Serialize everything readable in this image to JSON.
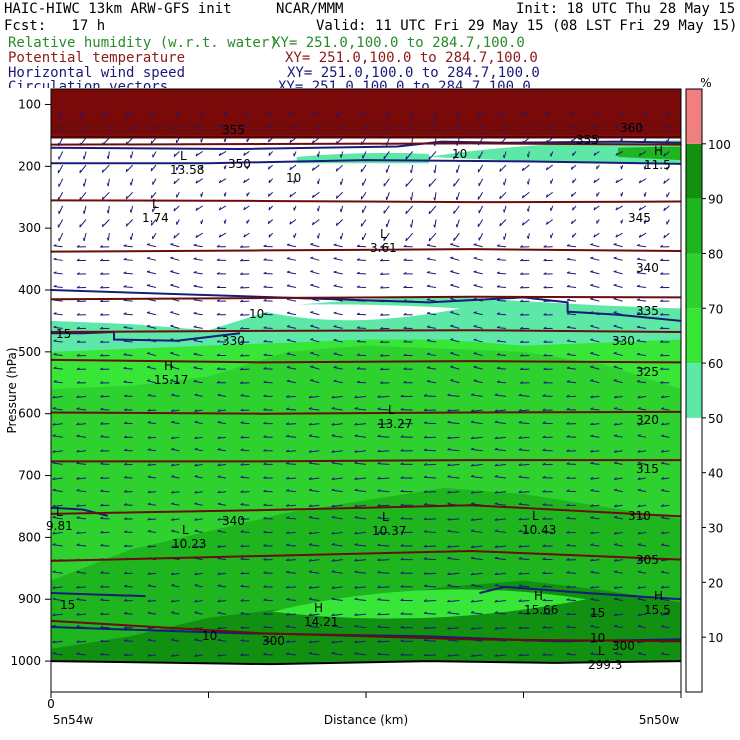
{
  "header": {
    "model": "HAIC-HIWC 13km ARW-GFS init",
    "center": "NCAR/MMM",
    "init": "Init: 18 UTC Thu 28 May 15",
    "fcst": "Fcst:   17 h",
    "valid": "Valid: 11 UTC Fri 29 May 15 (08 LST Fri 29 May 15)"
  },
  "fields": [
    {
      "name": "Relative humidity (w.r.t. water)",
      "xy": "XY= 251.0,100.0 to 284.7,100.0",
      "color": "#2a8a2a"
    },
    {
      "name": "Potential temperature",
      "xy": "XY= 251.0,100.0 to 284.7,100.0",
      "color": "#8b1a1a"
    },
    {
      "name": "Horizontal wind speed",
      "xy": "XY= 251.0,100.0 to 284.7,100.0",
      "color": "#1a1a7a"
    },
    {
      "name": "Circulation vectors",
      "xy": "XY= 251.0,100.0 to 284.7,100.0",
      "color": "#1a1a7a"
    }
  ],
  "chart_data": {
    "type": "heatmap",
    "title": "HAIC-HIWC 13km ARW-GFS init",
    "xlabel": "Distance (km)",
    "ylabel": "Pressure (hPa)",
    "x_tick_labels": {
      "left_value": "0",
      "left_loc": "5n54w",
      "right_loc": "5n50w"
    },
    "yticks": [
      100,
      200,
      300,
      400,
      500,
      600,
      700,
      800,
      900,
      1000
    ],
    "ylim": [
      1050,
      75
    ],
    "colorbar": {
      "unit": "%",
      "ticks": [
        10,
        20,
        30,
        40,
        50,
        60,
        70,
        80,
        90,
        100
      ],
      "bands": [
        {
          "from": 0,
          "to": 50,
          "color": "#ffffff"
        },
        {
          "from": 50,
          "to": 60,
          "color": "#5ee8a8"
        },
        {
          "from": 60,
          "to": 70,
          "color": "#37e637"
        },
        {
          "from": 70,
          "to": 80,
          "color": "#2ed12e"
        },
        {
          "from": 80,
          "to": 90,
          "color": "#1fb51f"
        },
        {
          "from": 90,
          "to": 100,
          "color": "#119011"
        },
        {
          "from": 100,
          "to": 110,
          "color": "#f08080"
        }
      ]
    },
    "theta_labels": [
      "360",
      "355",
      "350",
      "345",
      "340",
      "335",
      "330",
      "325",
      "320",
      "315",
      "310",
      "305",
      "300"
    ],
    "theta_lines": [
      {
        "value": 360,
        "p": [
          135,
          133,
          132,
          134
        ]
      },
      {
        "value": 355,
        "p": [
          143,
          142,
          141,
          143
        ]
      },
      {
        "value": 350,
        "p": [
          165,
          164,
          163,
          165
        ]
      },
      {
        "value": 345,
        "p": [
          255,
          256,
          258,
          257
        ]
      },
      {
        "value": 340,
        "p": [
          338,
          336,
          334,
          337
        ]
      },
      {
        "value": 335,
        "p": [
          415,
          413,
          411,
          412
        ]
      },
      {
        "value": 330,
        "p": [
          468,
          466,
          465,
          468
        ]
      },
      {
        "value": 325,
        "p": [
          513,
          517,
          515,
          517
        ]
      },
      {
        "value": 320,
        "p": [
          598,
          600,
          598,
          597
        ]
      },
      {
        "value": 315,
        "p": [
          677,
          677,
          675,
          675
        ]
      },
      {
        "value": 310,
        "p": [
          762,
          756,
          748,
          766
        ]
      },
      {
        "value": 305,
        "p": [
          838,
          830,
          822,
          836
        ]
      },
      {
        "value": 300,
        "p": [
          935,
          955,
          965,
          968
        ]
      }
    ],
    "extrema": [
      {
        "type": "L",
        "value": "1.74"
      },
      {
        "type": "L",
        "value": "13.58"
      },
      {
        "type": "L",
        "value": "3.61"
      },
      {
        "type": "H",
        "value": "11.5"
      },
      {
        "type": "H",
        "value": "15.17"
      },
      {
        "type": "L",
        "value": "13.27"
      },
      {
        "type": "L",
        "value": "9.81"
      },
      {
        "type": "L",
        "value": "10.23"
      },
      {
        "type": "L",
        "value": "10.37"
      },
      {
        "type": "L",
        "value": "10.43"
      },
      {
        "type": "H",
        "value": "14.21"
      },
      {
        "type": "H",
        "value": "15.66"
      },
      {
        "type": "H",
        "value": "15.5"
      },
      {
        "type": "L",
        "value": "299.3"
      }
    ],
    "wind_labels": [
      "10",
      "10",
      "10",
      "15",
      "15",
      "15",
      "10",
      "10"
    ],
    "extra_labels": [
      "355",
      "330",
      "340",
      "300"
    ]
  }
}
